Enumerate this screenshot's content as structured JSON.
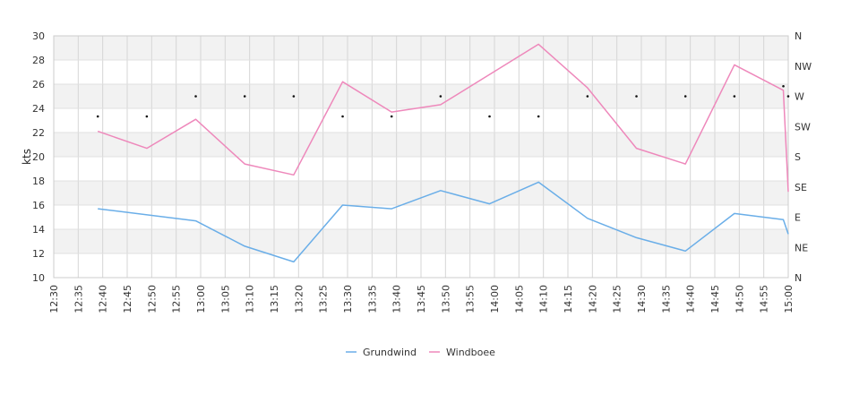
{
  "chart_data": {
    "type": "line",
    "ylabel": "kts",
    "ylim": [
      10,
      30
    ],
    "y_ticks": [
      "10",
      "12",
      "14",
      "16",
      "18",
      "20",
      "22",
      "24",
      "26",
      "28",
      "30"
    ],
    "x_ticks": [
      "12:30",
      "12:35",
      "12:40",
      "12:45",
      "12:50",
      "12:55",
      "13:00",
      "13:05",
      "13:10",
      "13:15",
      "13:20",
      "13:25",
      "13:30",
      "13:35",
      "13:40",
      "13:45",
      "13:50",
      "13:55",
      "14:00",
      "14:05",
      "14:10",
      "14:15",
      "14:20",
      "14:25",
      "14:30",
      "14:35",
      "14:40",
      "14:45",
      "14:50",
      "14:55",
      "15:00"
    ],
    "x_range": [
      "12:30",
      "15:00"
    ],
    "right_axis": {
      "labels": [
        "N",
        "NE",
        "E",
        "SE",
        "S",
        "SW",
        "W",
        "NW",
        "N"
      ],
      "range_deg": [
        0,
        360
      ]
    },
    "grid": true,
    "legend_position": "bottom",
    "series": [
      {
        "name": "Grundwind",
        "color": "#6aaee8",
        "points": [
          [
            "12:39",
            15.7
          ],
          [
            "12:59",
            14.7
          ],
          [
            "13:09",
            12.6
          ],
          [
            "13:19",
            11.3
          ],
          [
            "13:29",
            16.0
          ],
          [
            "13:39",
            15.7
          ],
          [
            "13:49",
            17.2
          ],
          [
            "13:59",
            16.1
          ],
          [
            "14:09",
            17.9
          ],
          [
            "14:19",
            14.9
          ],
          [
            "14:29",
            13.3
          ],
          [
            "14:39",
            12.2
          ],
          [
            "14:49",
            15.3
          ],
          [
            "14:59",
            14.8
          ],
          [
            "15:00",
            13.6
          ]
        ]
      },
      {
        "name": "Windboee",
        "color": "#ee88bb",
        "points": [
          [
            "12:39",
            22.1
          ],
          [
            "12:49",
            20.7
          ],
          [
            "12:59",
            23.1
          ],
          [
            "13:09",
            19.4
          ],
          [
            "13:19",
            18.5
          ],
          [
            "13:29",
            26.2
          ],
          [
            "13:39",
            23.7
          ],
          [
            "13:49",
            24.3
          ],
          [
            "14:09",
            29.3
          ],
          [
            "14:19",
            25.7
          ],
          [
            "14:29",
            20.7
          ],
          [
            "14:39",
            19.4
          ],
          [
            "14:49",
            27.6
          ],
          [
            "14:59",
            25.5
          ],
          [
            "15:00",
            17.1
          ]
        ]
      }
    ],
    "direction_markers": [
      [
        "12:39",
        240
      ],
      [
        "12:49",
        240
      ],
      [
        "12:59",
        270
      ],
      [
        "13:09",
        270
      ],
      [
        "13:19",
        270
      ],
      [
        "13:29",
        240
      ],
      [
        "13:39",
        240
      ],
      [
        "13:49",
        270
      ],
      [
        "13:59",
        240
      ],
      [
        "14:09",
        240
      ],
      [
        "14:19",
        270
      ],
      [
        "14:29",
        270
      ],
      [
        "14:39",
        270
      ],
      [
        "14:49",
        270
      ],
      [
        "14:59",
        285
      ],
      [
        "15:00",
        270
      ]
    ]
  }
}
